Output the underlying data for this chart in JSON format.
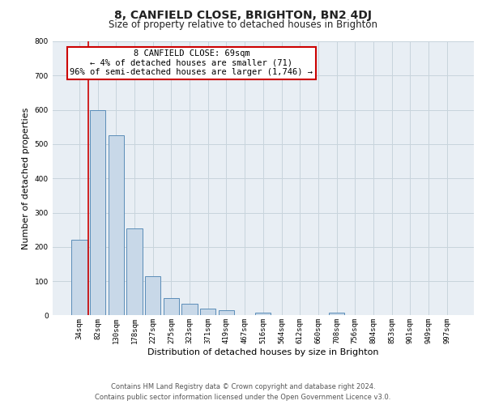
{
  "title": "8, CANFIELD CLOSE, BRIGHTON, BN2 4DJ",
  "subtitle": "Size of property relative to detached houses in Brighton",
  "xlabel": "Distribution of detached houses by size in Brighton",
  "ylabel": "Number of detached properties",
  "bin_labels": [
    "34sqm",
    "82sqm",
    "130sqm",
    "178sqm",
    "227sqm",
    "275sqm",
    "323sqm",
    "371sqm",
    "419sqm",
    "467sqm",
    "516sqm",
    "564sqm",
    "612sqm",
    "660sqm",
    "708sqm",
    "756sqm",
    "804sqm",
    "853sqm",
    "901sqm",
    "949sqm",
    "997sqm"
  ],
  "bar_values": [
    220,
    600,
    525,
    255,
    115,
    50,
    35,
    20,
    15,
    0,
    8,
    0,
    0,
    0,
    7,
    0,
    0,
    0,
    0,
    0,
    0
  ],
  "bar_color": "#c8d8e8",
  "bar_edge_color": "#5b8db8",
  "highlight_line_color": "#cc0000",
  "annotation_text": "8 CANFIELD CLOSE: 69sqm\n← 4% of detached houses are smaller (71)\n96% of semi-detached houses are larger (1,746) →",
  "annotation_box_color": "#ffffff",
  "annotation_box_edge_color": "#cc0000",
  "ylim": [
    0,
    800
  ],
  "yticks": [
    0,
    100,
    200,
    300,
    400,
    500,
    600,
    700,
    800
  ],
  "grid_color": "#c8d4dc",
  "background_color": "#e8eef4",
  "footer_line1": "Contains HM Land Registry data © Crown copyright and database right 2024.",
  "footer_line2": "Contains public sector information licensed under the Open Government Licence v3.0.",
  "title_fontsize": 10,
  "subtitle_fontsize": 8.5,
  "axis_label_fontsize": 8,
  "tick_fontsize": 6.5,
  "annotation_fontsize": 7.5,
  "footer_fontsize": 6
}
